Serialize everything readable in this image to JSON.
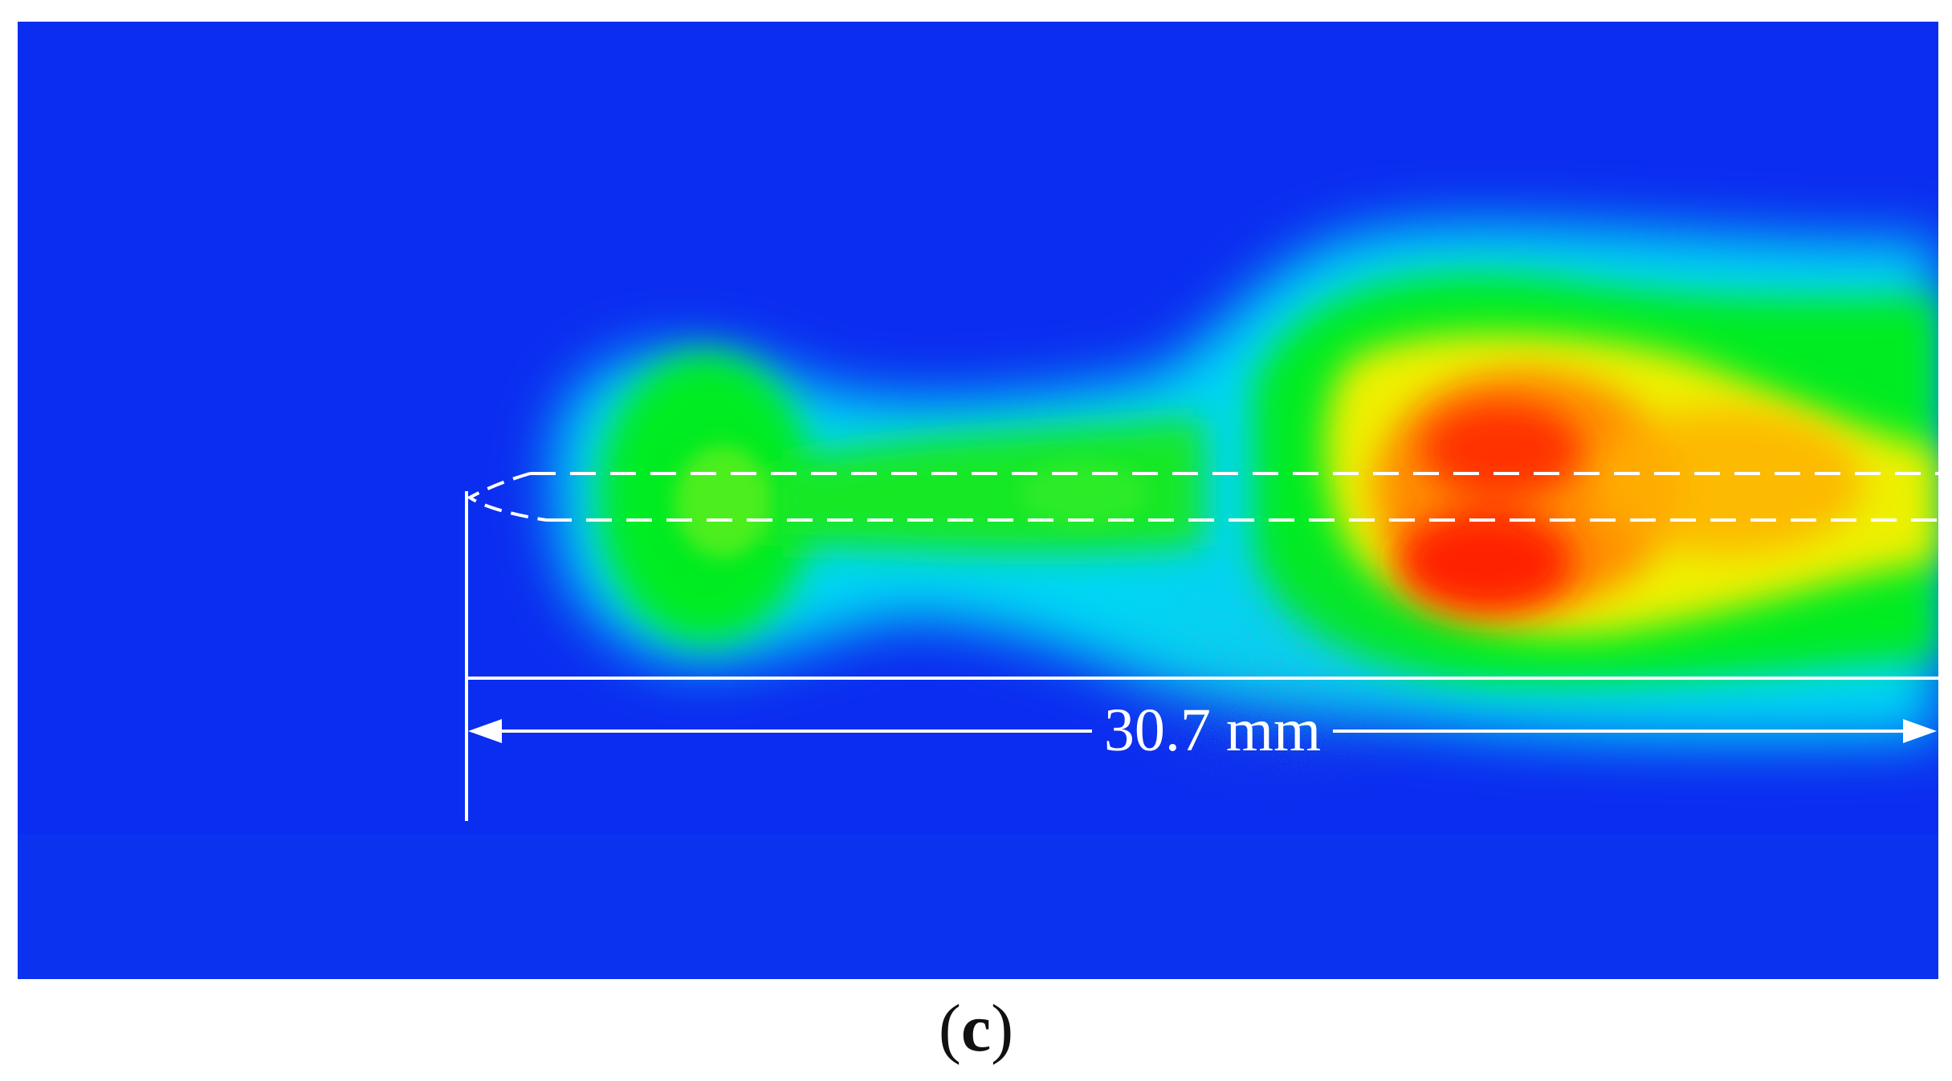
{
  "figure": {
    "measurement_label": "30.7 mm",
    "panel_label": {
      "open": "(",
      "letter": "c",
      "close": ")"
    }
  },
  "colors": {
    "background_blue": "#0b2df0",
    "cyan": "#00e6f0",
    "green": "#00ee22",
    "yellow": "#f0f000",
    "orange": "#ff8800",
    "red": "#ff2200",
    "annotation_white": "#ffffff"
  },
  "icons": [
    "nozzle-outline-icon",
    "left-arrowhead-icon",
    "right-arrowhead-icon"
  ]
}
